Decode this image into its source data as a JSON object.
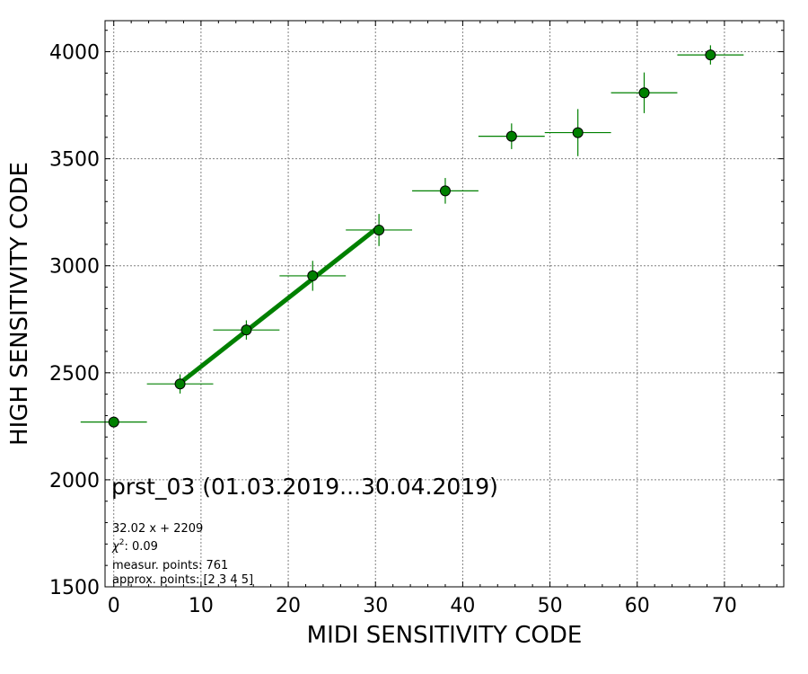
{
  "chart_data": {
    "type": "scatter",
    "xlabel": "MIDI SENSITIVITY CODE",
    "ylabel": "HIGH SENSITIVITY CODE",
    "xlim": [
      -1,
      76.8
    ],
    "ylim": [
      1500,
      4145
    ],
    "x_ticks": [
      0,
      10,
      20,
      30,
      40,
      50,
      60,
      70
    ],
    "y_ticks": [
      1500,
      2000,
      2500,
      3000,
      3500,
      4000
    ],
    "grid": true,
    "annotation_title": "prst_03 (01.03.2019...30.04.2019)",
    "annotation_lines": [
      "32.02 x + 2209",
      "0.09",
      "measur. points: 761",
      "approx. points: [2 3 4 5]"
    ],
    "chi2_label": "χ",
    "chi2_sup": "2",
    "chi2_sep": ": ",
    "points": [
      {
        "x": 0.0,
        "y": 2270,
        "xerr": 3.8,
        "yerr": 15
      },
      {
        "x": 7.6,
        "y": 2448,
        "xerr": 3.8,
        "yerr": 45
      },
      {
        "x": 15.2,
        "y": 2700,
        "xerr": 3.8,
        "yerr": 45
      },
      {
        "x": 22.8,
        "y": 2953,
        "xerr": 3.8,
        "yerr": 70
      },
      {
        "x": 30.4,
        "y": 3167,
        "xerr": 3.8,
        "yerr": 75
      },
      {
        "x": 38.0,
        "y": 3350,
        "xerr": 3.8,
        "yerr": 60
      },
      {
        "x": 45.6,
        "y": 3605,
        "xerr": 3.8,
        "yerr": 60
      },
      {
        "x": 53.2,
        "y": 3622,
        "xerr": 3.8,
        "yerr": 110
      },
      {
        "x": 60.8,
        "y": 3808,
        "xerr": 3.8,
        "yerr": 95
      },
      {
        "x": 68.4,
        "y": 3985,
        "xerr": 3.8,
        "yerr": 45
      }
    ],
    "fit": {
      "slope": 32.02,
      "intercept": 2209,
      "x_range": [
        7.6,
        30.4
      ]
    },
    "colors": {
      "marker": "#008000",
      "fit_line": "#008000",
      "grid": "#808080"
    }
  }
}
